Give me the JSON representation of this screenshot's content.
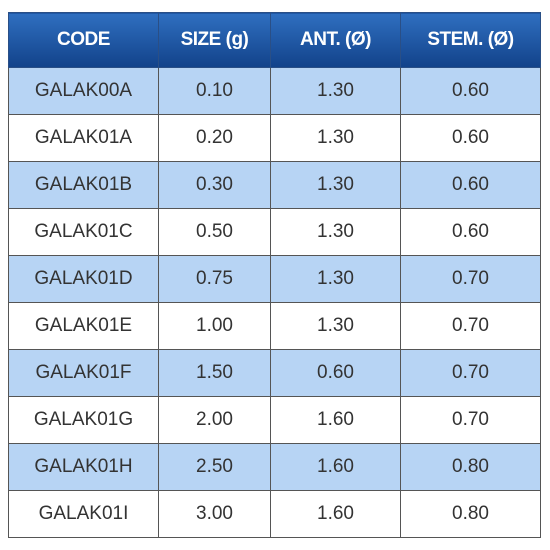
{
  "table": {
    "header": [
      "CODE",
      "SIZE (g)",
      "ANT. (Ø)",
      "STEM. (Ø)"
    ],
    "rows": [
      [
        "GALAK00A",
        "0.10",
        "1.30",
        "0.60"
      ],
      [
        "GALAK01A",
        "0.20",
        "1.30",
        "0.60"
      ],
      [
        "GALAK01B",
        "0.30",
        "1.30",
        "0.60"
      ],
      [
        "GALAK01C",
        "0.50",
        "1.30",
        "0.60"
      ],
      [
        "GALAK01D",
        "0.75",
        "1.30",
        "0.70"
      ],
      [
        "GALAK01E",
        "1.00",
        "1.30",
        "0.70"
      ],
      [
        "GALAK01F",
        "1.50",
        "0.60",
        "0.70"
      ],
      [
        "GALAK01G",
        "2.00",
        "1.60",
        "0.70"
      ],
      [
        "GALAK01H",
        "2.50",
        "1.60",
        "0.80"
      ],
      [
        "GALAK01I",
        "3.00",
        "1.60",
        "0.80"
      ]
    ]
  }
}
